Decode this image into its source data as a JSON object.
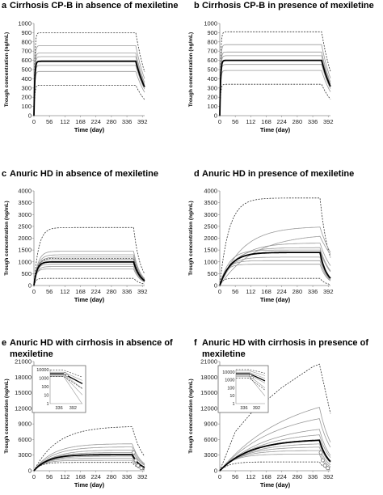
{
  "colors": {
    "bold": "#000000",
    "thin": "#999999",
    "dashed": "#333333",
    "axis": "#8c8c8c",
    "marker": "#777777"
  },
  "chart_data": [
    {
      "letter": "a",
      "title": "Cirrhosis CP-B in absence of mexiletine",
      "type": "line",
      "xlabel": "Time (day)",
      "ylabel": "Trough concentration (ng/mL)",
      "xlim": [
        0,
        400
      ],
      "ylim": [
        0,
        1000
      ],
      "xticks": [
        0,
        56,
        112,
        168,
        224,
        280,
        336,
        392
      ],
      "yticks": [
        0,
        100,
        200,
        300,
        400,
        500,
        600,
        700,
        800,
        900,
        1000
      ],
      "ss_end_day": 368,
      "series": [
        {
          "style": "dashed",
          "ss": 900,
          "k": 0.35,
          "tail": 0.02
        },
        {
          "style": "thin",
          "ss": 760,
          "k": 0.35,
          "tail": 0.02
        },
        {
          "style": "thin",
          "ss": 680,
          "k": 0.35,
          "tail": 0.02
        },
        {
          "style": "thin",
          "ss": 640,
          "k": 0.35,
          "tail": 0.02
        },
        {
          "style": "bold",
          "ss": 590,
          "k": 0.35,
          "tail": 0.02
        },
        {
          "style": "thin",
          "ss": 545,
          "k": 0.35,
          "tail": 0.02
        },
        {
          "style": "thin",
          "ss": 480,
          "k": 0.35,
          "tail": 0.02
        },
        {
          "style": "dashed",
          "ss": 330,
          "k": 0.35,
          "tail": 0.02
        }
      ]
    },
    {
      "letter": "b",
      "title": "Cirrhosis CP-B in presence of mexiletine",
      "type": "line",
      "xlabel": "Time (day)",
      "ylabel": "Trough concentration (ng/mL)",
      "xlim": [
        0,
        400
      ],
      "ylim": [
        0,
        1000
      ],
      "xticks": [
        0,
        56,
        112,
        168,
        224,
        280,
        336,
        392
      ],
      "yticks": [
        0,
        100,
        200,
        300,
        400,
        500,
        600,
        700,
        800,
        900,
        1000
      ],
      "ss_end_day": 368,
      "series": [
        {
          "style": "dashed",
          "ss": 910,
          "k": 0.35,
          "tail": 0.02
        },
        {
          "style": "thin",
          "ss": 770,
          "k": 0.35,
          "tail": 0.02
        },
        {
          "style": "thin",
          "ss": 690,
          "k": 0.35,
          "tail": 0.02
        },
        {
          "style": "thin",
          "ss": 650,
          "k": 0.35,
          "tail": 0.02
        },
        {
          "style": "bold",
          "ss": 600,
          "k": 0.35,
          "tail": 0.02
        },
        {
          "style": "thin",
          "ss": 555,
          "k": 0.35,
          "tail": 0.02
        },
        {
          "style": "thin",
          "ss": 490,
          "k": 0.35,
          "tail": 0.02
        },
        {
          "style": "dashed",
          "ss": 340,
          "k": 0.35,
          "tail": 0.02
        }
      ]
    },
    {
      "letter": "c",
      "title": "Anuric HD in absence of mexiletine",
      "type": "line",
      "xlabel": "Time (day)",
      "ylabel": "Trough concentration (ng/mL)",
      "xlim": [
        0,
        400
      ],
      "ylim": [
        0,
        4000
      ],
      "xticks": [
        0,
        56,
        112,
        168,
        224,
        280,
        336,
        392
      ],
      "yticks": [
        0,
        500,
        1000,
        1500,
        2000,
        2500,
        3000,
        3500,
        4000
      ],
      "ss_end_day": 360,
      "series": [
        {
          "style": "dashed",
          "ss": 2450,
          "k": 0.06,
          "tail": 0.04
        },
        {
          "style": "thin",
          "ss": 1450,
          "k": 0.07,
          "tail": 0.04
        },
        {
          "style": "thin",
          "ss": 1300,
          "k": 0.07,
          "tail": 0.04
        },
        {
          "style": "thin",
          "ss": 1200,
          "k": 0.07,
          "tail": 0.04
        },
        {
          "style": "dashed",
          "ss": 1150,
          "k": 0.08,
          "tail": 0.04
        },
        {
          "style": "thin",
          "ss": 1100,
          "k": 0.08,
          "tail": 0.04
        },
        {
          "style": "bold",
          "ss": 1000,
          "k": 0.09,
          "tail": 0.04
        },
        {
          "style": "thin",
          "ss": 900,
          "k": 0.1,
          "tail": 0.04
        },
        {
          "style": "thin",
          "ss": 800,
          "k": 0.1,
          "tail": 0.04
        },
        {
          "style": "thin",
          "ss": 700,
          "k": 0.12,
          "tail": 0.04
        },
        {
          "style": "dashed",
          "ss": 300,
          "k": 0.15,
          "tail": 0.04
        }
      ]
    },
    {
      "letter": "d",
      "title": "Anuric HD in presence of mexiletine",
      "type": "line",
      "xlabel": "Time (day)",
      "ylabel": "Trough concentration (ng/mL)",
      "xlim": [
        0,
        400
      ],
      "ylim": [
        0,
        4000
      ],
      "xticks": [
        0,
        56,
        112,
        168,
        224,
        280,
        336,
        392
      ],
      "yticks": [
        0,
        500,
        1000,
        1500,
        2000,
        2500,
        3000,
        3500,
        4000
      ],
      "ss_end_day": 362,
      "series": [
        {
          "style": "dashed",
          "ss": 3700,
          "k": 0.03,
          "tail": 0.03
        },
        {
          "style": "thin",
          "ss": 2500,
          "k": 0.012,
          "tail": 0.015
        },
        {
          "style": "thin",
          "ss": 2200,
          "k": 0.008,
          "tail": 0.012
        },
        {
          "style": "thin",
          "ss": 1800,
          "k": 0.015,
          "tail": 0.02
        },
        {
          "style": "thin",
          "ss": 1600,
          "k": 0.02,
          "tail": 0.025
        },
        {
          "style": "thin",
          "ss": 1500,
          "k": 0.03,
          "tail": 0.025
        },
        {
          "style": "bold",
          "ss": 1400,
          "k": 0.025,
          "tail": 0.04
        },
        {
          "style": "thin",
          "ss": 1200,
          "k": 0.03,
          "tail": 0.04
        },
        {
          "style": "thin",
          "ss": 1050,
          "k": 0.04,
          "tail": 0.04
        },
        {
          "style": "thin",
          "ss": 900,
          "k": 0.05,
          "tail": 0.04
        },
        {
          "style": "dashed",
          "ss": 300,
          "k": 0.1,
          "tail": 0.05
        }
      ]
    },
    {
      "letter": "e",
      "title": "Anuric HD with cirrhosis in absence of mexiletine",
      "type": "line",
      "xlabel": "Time (day)",
      "ylabel": "Trough concentration (ng/mL)",
      "xlim": [
        0,
        400
      ],
      "ylim": [
        0,
        21000
      ],
      "xticks": [
        0,
        56,
        112,
        168,
        224,
        280,
        336,
        392
      ],
      "yticks": [
        0,
        3000,
        6000,
        9000,
        12000,
        15000,
        18000,
        21000
      ],
      "ss_end_day": 355,
      "series": [
        {
          "style": "dashed",
          "ss": 8600,
          "k": 0.012,
          "tail": 0.025
        },
        {
          "style": "thin",
          "ss": 5200,
          "k": 0.015,
          "tail": 0.03
        },
        {
          "style": "thin",
          "ss": 4600,
          "k": 0.015,
          "tail": 0.03
        },
        {
          "style": "thin",
          "ss": 4000,
          "k": 0.015,
          "tail": 0.03
        },
        {
          "style": "thin",
          "ss": 3500,
          "k": 0.018,
          "tail": 0.035
        },
        {
          "style": "bold",
          "ss": 3100,
          "k": 0.02,
          "tail": 0.035
        },
        {
          "style": "thin",
          "ss": 2800,
          "k": 0.02,
          "tail": 0.035
        },
        {
          "style": "thin",
          "ss": 2400,
          "k": 0.025,
          "tail": 0.04
        },
        {
          "style": "thin",
          "ss": 2000,
          "k": 0.03,
          "tail": 0.04
        },
        {
          "style": "dashed",
          "ss": 1600,
          "k": 0.04,
          "tail": 0.045
        }
      ],
      "markers": [
        [
          360,
          3500
        ],
        [
          368,
          2000
        ],
        [
          376,
          1000
        ],
        [
          388,
          500
        ]
      ],
      "inset": {
        "yticks": [
          "10000",
          "1000",
          "100",
          "10",
          "1"
        ],
        "xticks": [
          "336",
          "392"
        ],
        "xlim": [
          300,
          430
        ],
        "ylog": [
          0,
          4
        ],
        "ss_end_day": 355,
        "series": [
          {
            "style": "dashed",
            "ss": 8600,
            "tail": 0.025
          },
          {
            "style": "thin",
            "ss": 5000,
            "tail": 0.03
          },
          {
            "style": "thin",
            "ss": 4000,
            "tail": 0.04
          },
          {
            "style": "bold",
            "ss": 3100,
            "tail": 0.035
          },
          {
            "style": "thin",
            "ss": 2600,
            "tail": 0.05
          },
          {
            "style": "thin",
            "ss": 2000,
            "tail": 0.07
          },
          {
            "style": "thin",
            "ss": 1500,
            "tail": 0.1
          },
          {
            "style": "dashed",
            "ss": 1600,
            "tail": 0.045
          }
        ],
        "markers": [
          [
            360,
            3500
          ],
          [
            368,
            2000
          ]
        ]
      }
    },
    {
      "letter": "f",
      "title": "Anuric HD with cirrhosis in presence of mexiletine",
      "type": "line",
      "xlabel": "Time (day)",
      "ylabel": "Trough concentration (ng/mL)",
      "xlim": [
        0,
        400
      ],
      "ylim": [
        0,
        21000
      ],
      "xticks": [
        0,
        56,
        112,
        168,
        224,
        280,
        336,
        392
      ],
      "yticks": [
        0,
        3000,
        6000,
        9000,
        12000,
        15000,
        18000,
        21000
      ],
      "ss_end_day": 360,
      "series": [
        {
          "style": "dashed",
          "linear": true,
          "points": [
            [
              0,
              0
            ],
            [
              56,
              7500
            ],
            [
              112,
              11000
            ],
            [
              168,
              13500
            ],
            [
              224,
              16000
            ],
            [
              280,
              18000
            ],
            [
              336,
              20000
            ],
            [
              360,
              20500
            ],
            [
              400,
              11000
            ]
          ]
        },
        {
          "style": "thin",
          "ss": 16000,
          "k": 0.004,
          "tail": 0.02
        },
        {
          "style": "thin",
          "ss": 12000,
          "k": 0.005,
          "tail": 0.02
        },
        {
          "style": "thin",
          "ss": 9000,
          "k": 0.006,
          "tail": 0.025
        },
        {
          "style": "thin",
          "ss": 7500,
          "k": 0.007,
          "tail": 0.025
        },
        {
          "style": "bold",
          "ss": 6100,
          "k": 0.009,
          "tail": 0.03
        },
        {
          "style": "thin",
          "ss": 5300,
          "k": 0.01,
          "tail": 0.03
        },
        {
          "style": "thin",
          "ss": 4600,
          "k": 0.012,
          "tail": 0.035
        },
        {
          "style": "thin",
          "ss": 3900,
          "k": 0.015,
          "tail": 0.04
        },
        {
          "style": "thin",
          "ss": 3200,
          "k": 0.02,
          "tail": 0.045
        },
        {
          "style": "dashed",
          "ss": 1700,
          "k": 0.03,
          "tail": 0.05
        }
      ],
      "markers": [
        [
          365,
          3500
        ],
        [
          372,
          2000
        ],
        [
          380,
          1000
        ],
        [
          390,
          500
        ]
      ],
      "inset": {
        "yticks": [
          "10000",
          "1000",
          "100",
          "10",
          "1"
        ],
        "xticks": [
          "336",
          "392"
        ],
        "xlim": [
          300,
          430
        ],
        "ylog": [
          0,
          4.3
        ],
        "ss_end_day": 360,
        "series": [
          {
            "style": "dashed",
            "ss": 20500,
            "tail": 0.015
          },
          {
            "style": "thin",
            "ss": 14000,
            "tail": 0.02
          },
          {
            "style": "thin",
            "ss": 9000,
            "tail": 0.025
          },
          {
            "style": "bold",
            "ss": 6100,
            "tail": 0.03
          },
          {
            "style": "thin",
            "ss": 4500,
            "tail": 0.035
          },
          {
            "style": "thin",
            "ss": 3200,
            "tail": 0.05
          },
          {
            "style": "thin",
            "ss": 2500,
            "tail": 0.08
          },
          {
            "style": "dashed",
            "ss": 1700,
            "tail": 0.05
          }
        ],
        "markers": [
          [
            365,
            3500
          ],
          [
            372,
            2000
          ]
        ]
      }
    }
  ]
}
